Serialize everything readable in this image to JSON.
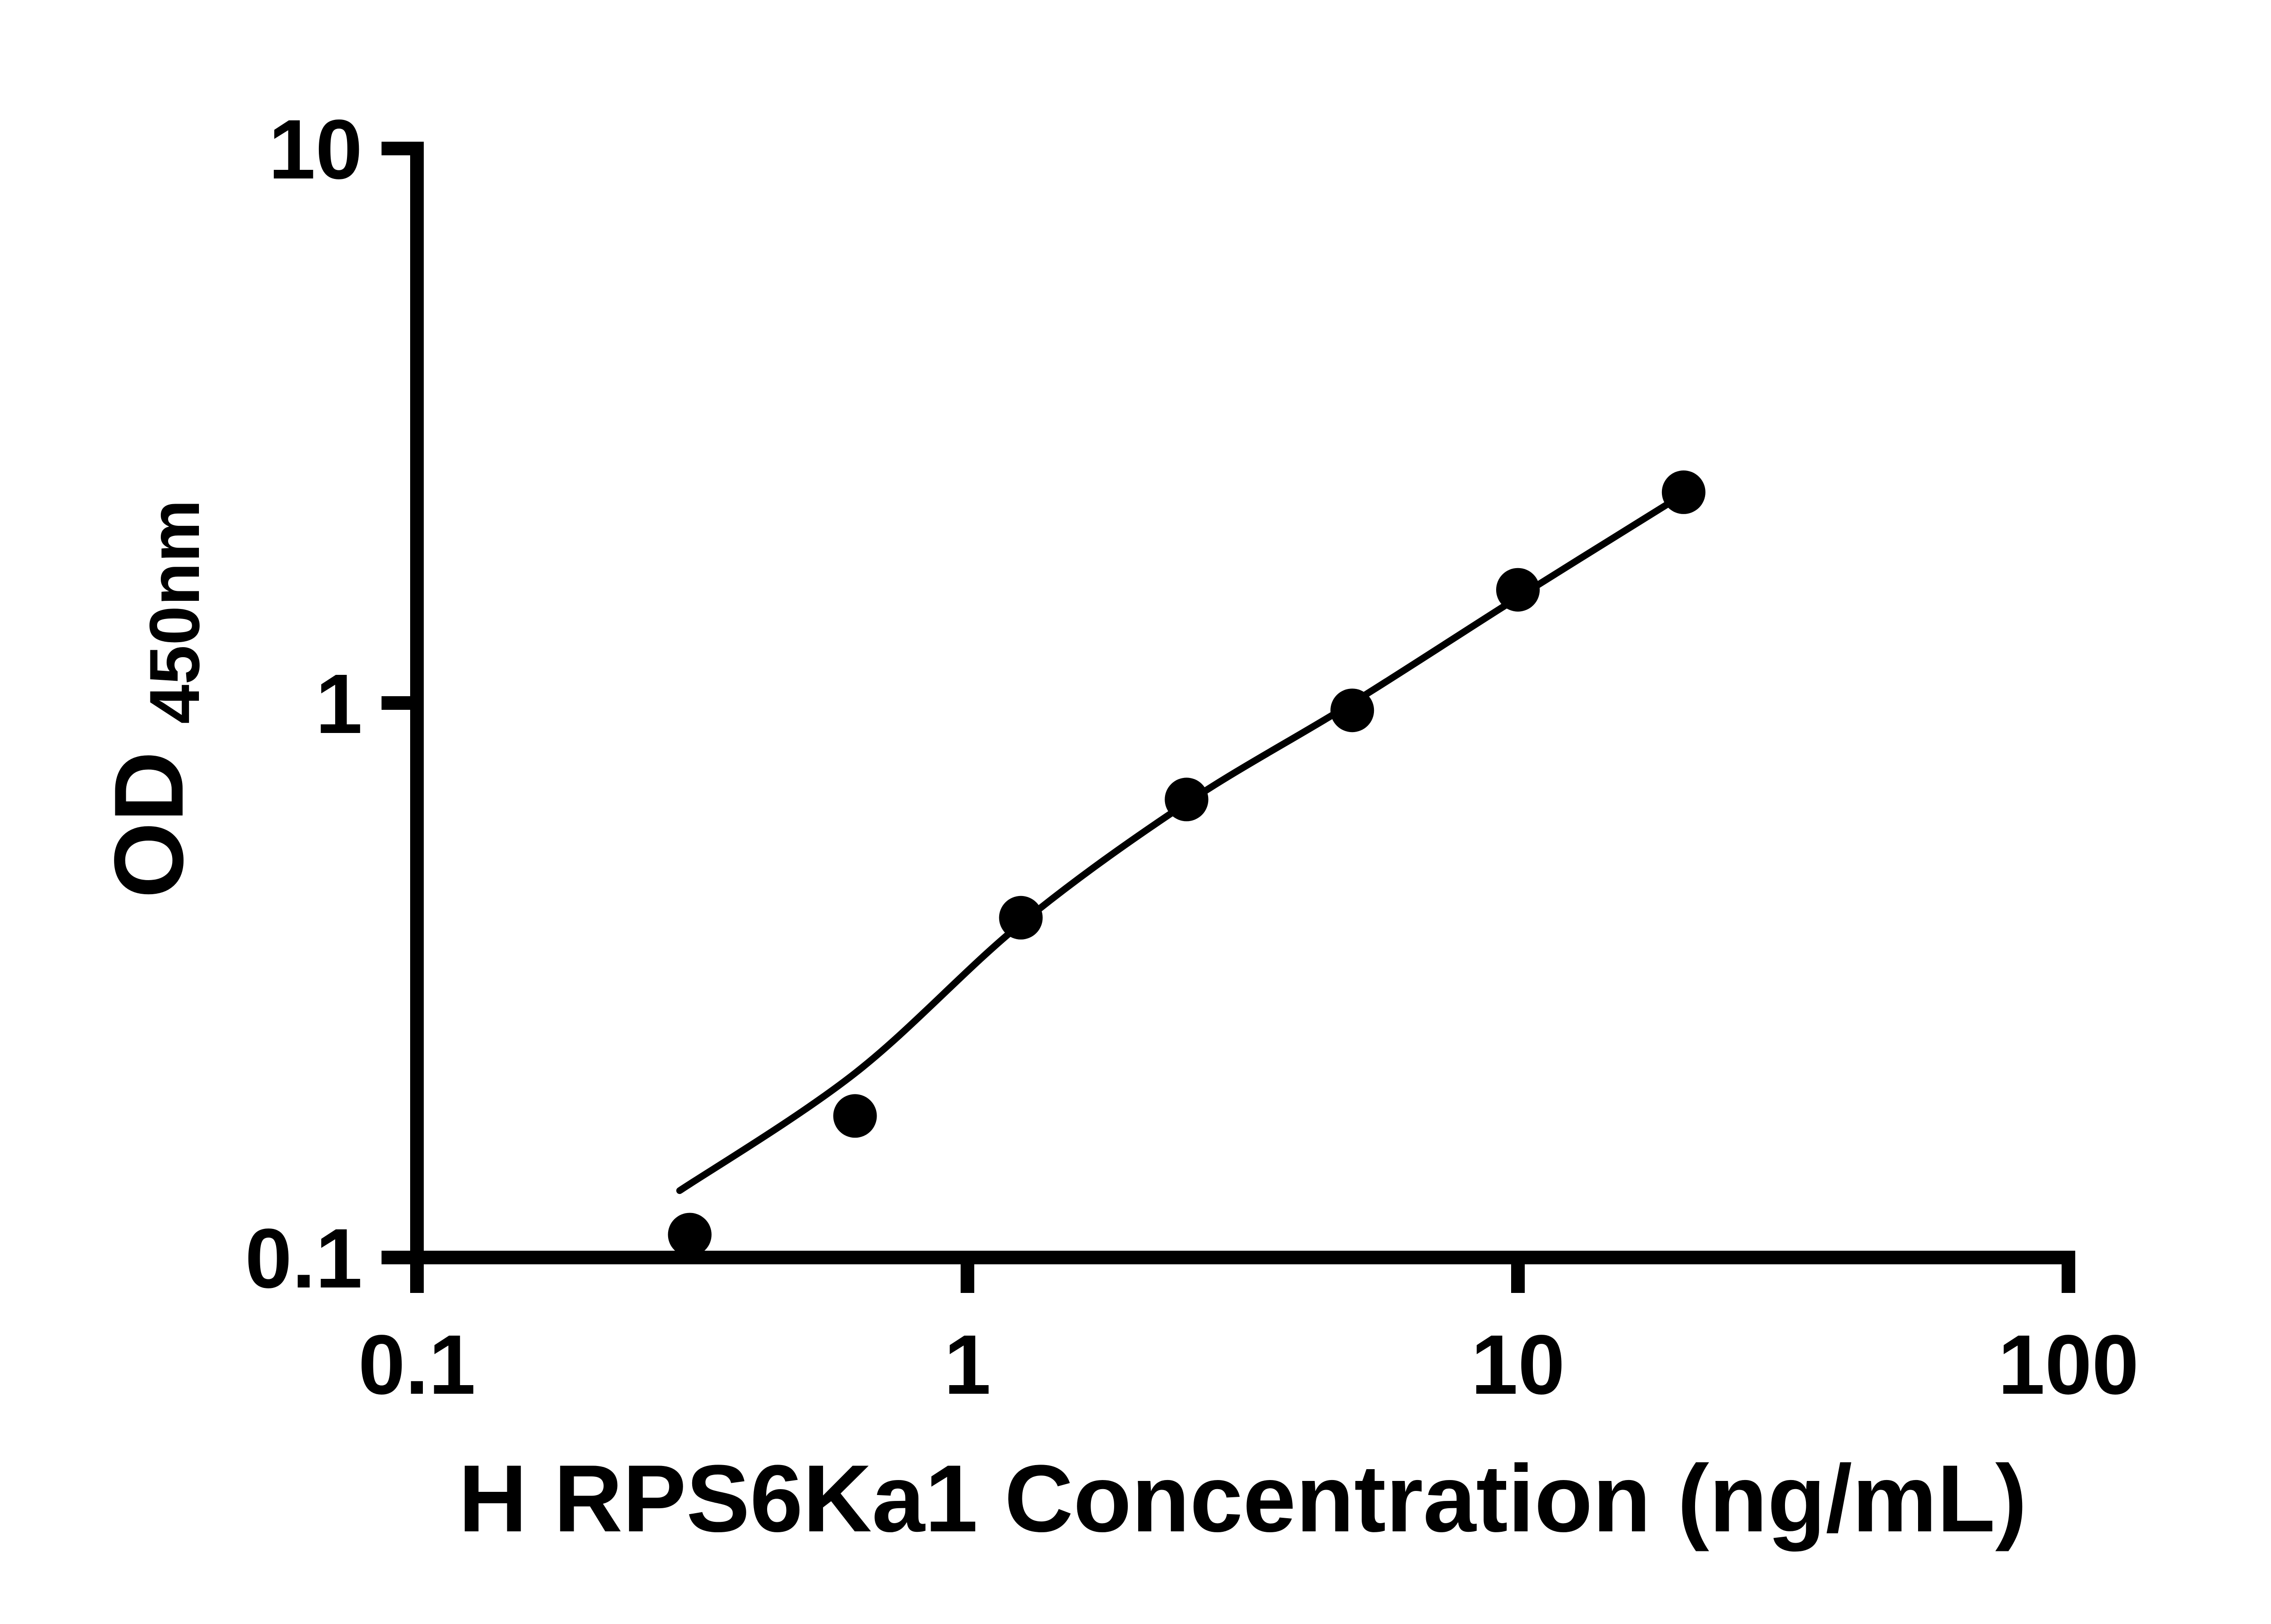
{
  "chart_data": {
    "type": "scatter",
    "title": "",
    "xlabel": "H RPS6Ka1 Concentration (ng/mL)",
    "ylabel_main": "OD",
    "ylabel_sub": "450nm",
    "x_scale": "log",
    "y_scale": "log",
    "xlim": [
      0.1,
      100
    ],
    "ylim": [
      0.1,
      10
    ],
    "grid": false,
    "legend": "none",
    "axis_color": "#000000",
    "marker_color": "#000000",
    "line_color": "#000000",
    "x_ticks": [
      {
        "value": 0.1,
        "label": "0.1"
      },
      {
        "value": 1,
        "label": "1"
      },
      {
        "value": 10,
        "label": "10"
      },
      {
        "value": 100,
        "label": "100"
      }
    ],
    "y_ticks": [
      {
        "value": 0.1,
        "label": "0.1"
      },
      {
        "value": 1,
        "label": "1"
      },
      {
        "value": 10,
        "label": "10"
      }
    ],
    "series": [
      {
        "name": "standard-curve-points",
        "marker": "circle",
        "color": "#000000",
        "points": [
          {
            "x": 0.313,
            "y": 0.11
          },
          {
            "x": 0.625,
            "y": 0.18
          },
          {
            "x": 1.25,
            "y": 0.41
          },
          {
            "x": 2.5,
            "y": 0.67
          },
          {
            "x": 5,
            "y": 0.97
          },
          {
            "x": 10,
            "y": 1.6
          },
          {
            "x": 20,
            "y": 2.4
          }
        ]
      }
    ],
    "fit_line": [
      {
        "x": 0.3,
        "y": 0.132
      },
      {
        "x": 0.625,
        "y": 0.215
      },
      {
        "x": 1.25,
        "y": 0.4
      },
      {
        "x": 2.5,
        "y": 0.66
      },
      {
        "x": 5,
        "y": 1.0
      },
      {
        "x": 10,
        "y": 1.55
      },
      {
        "x": 20,
        "y": 2.38
      }
    ]
  }
}
